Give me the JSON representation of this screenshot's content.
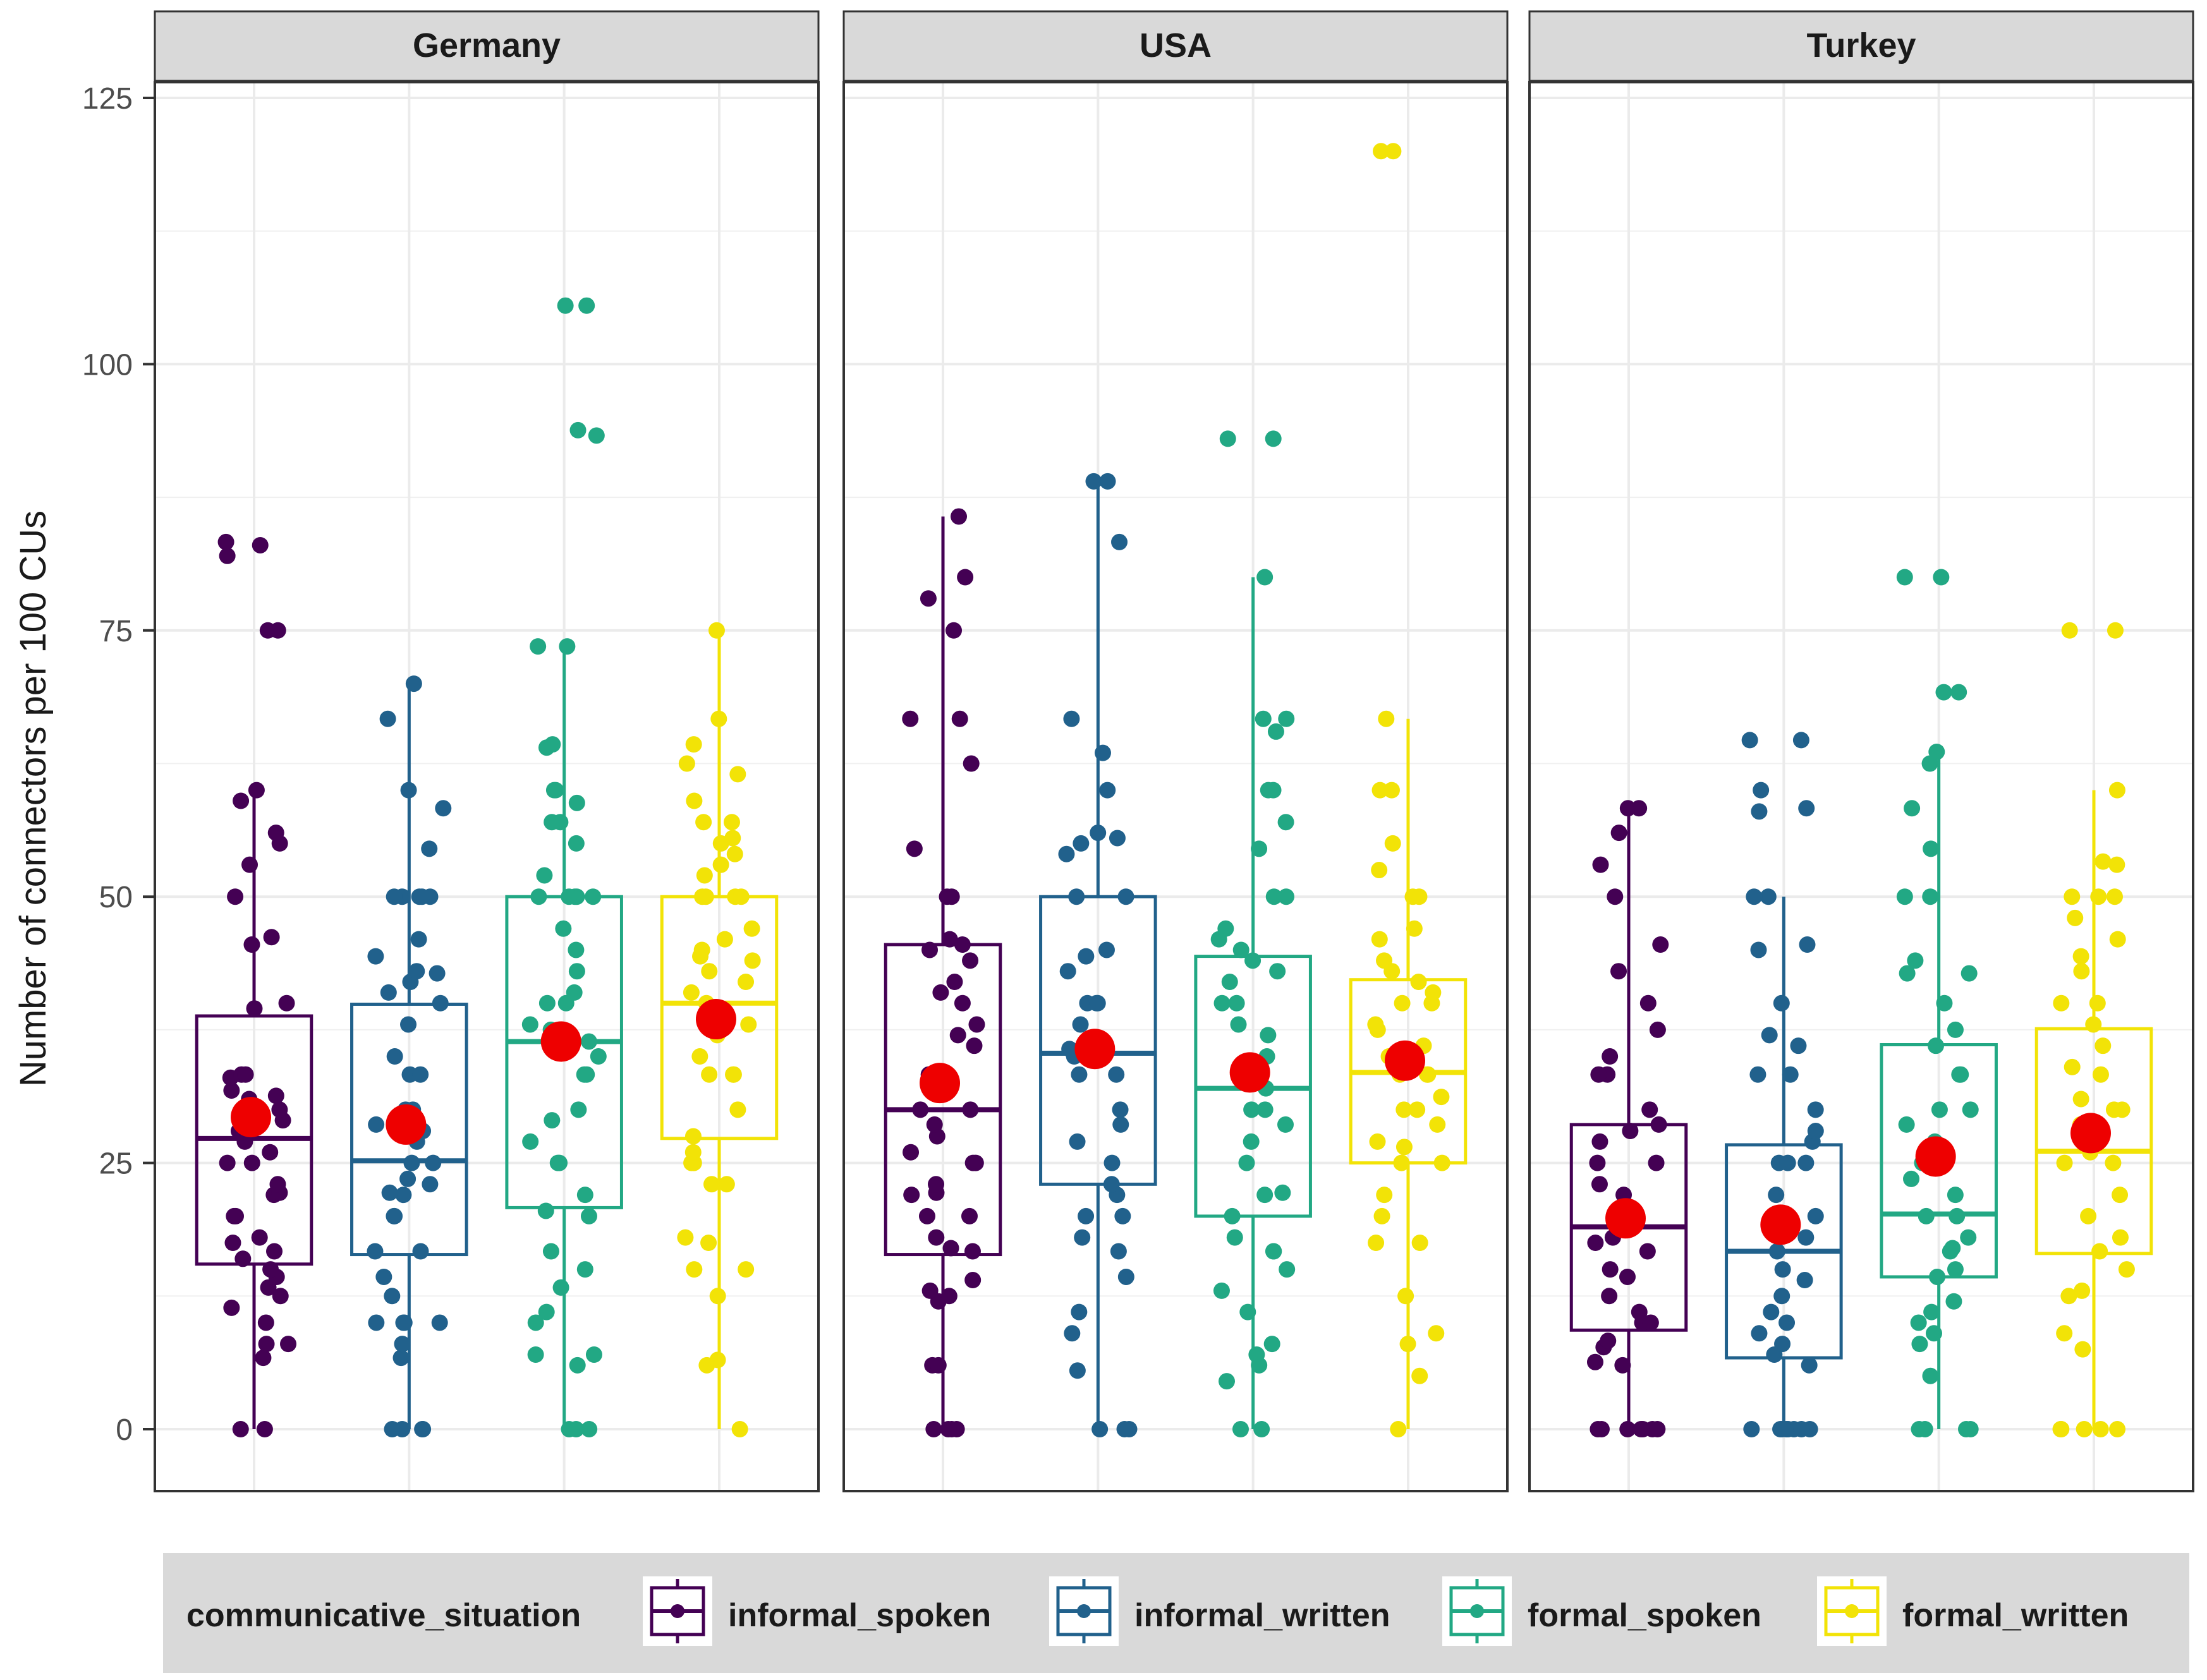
{
  "chart_data": {
    "type": "boxplot",
    "ylabel": "Number of connectors per 100 CUs",
    "xlabel": "",
    "ylim": [
      -5,
      126
    ],
    "yticks": [
      0,
      25,
      50,
      75,
      100,
      125
    ],
    "grid": true,
    "legend": {
      "title": "communicative_situation",
      "position": "bottom",
      "items": [
        {
          "name": "informal_spoken",
          "color": "#440154"
        },
        {
          "name": "informal_written",
          "color": "#21618C"
        },
        {
          "name": "formal_spoken",
          "color": "#22A884"
        },
        {
          "name": "formal_written",
          "color": "#F2E307"
        }
      ]
    },
    "mean_marker_color": "#EE0000",
    "facets": [
      {
        "name": "Germany",
        "groups": [
          {
            "situation": "informal_spoken",
            "whisker_low": 0,
            "q1": 15.5,
            "median": 27.3,
            "q3": 38.8,
            "whisker_high": 60,
            "mean": 29.3,
            "points": [
              0,
              0,
              6.7,
              8,
              8,
              10,
              11.4,
              12.5,
              13.3,
              14.3,
              15,
              16,
              16.7,
              17.5,
              18,
              20,
              20,
              22,
              22.2,
              23,
              25,
              25,
              26,
              27,
              28,
              28.6,
              29,
              30,
              30,
              31,
              31.3,
              31.8,
              33,
              33.3,
              33.3,
              39.5,
              40,
              45.5,
              46.2,
              50,
              53,
              55,
              56,
              59,
              60,
              75,
              75,
              82,
              83,
              83.3
            ]
          },
          {
            "situation": "informal_written",
            "whisker_low": 0,
            "q1": 16.4,
            "median": 25.2,
            "q3": 39.9,
            "whisker_high": 70,
            "mean": 28.6,
            "points": [
              0,
              0,
              0,
              0,
              6.7,
              8,
              10,
              10,
              10,
              10,
              12.5,
              14.3,
              16.7,
              16.7,
              20,
              20,
              22,
              22.2,
              23,
              23.5,
              25,
              25,
              27,
              28,
              28.6,
              30,
              30,
              33.3,
              33.3,
              35,
              38,
              40,
              41,
              42,
              42.8,
              43,
              44.4,
              46,
              50,
              50,
              50,
              50,
              50,
              54.5,
              58.3,
              60,
              66.7,
              70
            ]
          },
          {
            "situation": "formal_spoken",
            "whisker_low": 0,
            "q1": 20.8,
            "median": 36.4,
            "q3": 50,
            "whisker_high": 73.5,
            "mean": 36.4,
            "points": [
              0,
              0,
              0,
              6,
              7,
              7,
              10,
              11,
              13.3,
              15,
              16.7,
              20,
              20.5,
              22,
              25,
              25,
              27,
              29,
              30,
              33.3,
              33.3,
              35,
              36,
              36.4,
              37.5,
              38,
              40,
              40,
              41,
              43,
              45,
              47,
              50,
              50,
              50,
              50,
              50,
              52,
              55,
              57,
              57,
              58.8,
              60,
              60,
              64,
              64.3,
              73.5,
              73.5,
              93.3,
              93.8,
              105.5,
              105.5
            ]
          },
          {
            "situation": "formal_written",
            "whisker_low": 0,
            "q1": 27.3,
            "median": 40,
            "q3": 50,
            "whisker_high": 75,
            "mean": 38.5,
            "points": [
              0,
              6,
              6.5,
              12.5,
              15,
              15,
              17.5,
              18,
              23,
              23,
              25,
              25,
              26,
              27.5,
              30,
              33.3,
              33.3,
              33.3,
              35,
              37,
              38,
              40,
              41,
              42,
              43,
              44,
              44.4,
              45,
              46,
              47,
              50,
              50,
              50,
              50,
              52,
              53,
              54,
              55,
              55.5,
              57,
              57,
              59,
              61.5,
              62.5,
              64.3,
              66.7,
              75
            ]
          }
        ]
      },
      {
        "name": "USA",
        "groups": [
          {
            "situation": "informal_spoken",
            "whisker_low": 0,
            "q1": 16.4,
            "median": 30,
            "q3": 45.5,
            "whisker_high": 85.7,
            "mean": 32.5,
            "points": [
              0,
              0,
              0,
              0,
              6,
              6,
              12,
              12.5,
              13,
              14,
              16.7,
              17,
              18,
              20,
              20,
              22,
              22.2,
              23,
              25,
              25,
              26,
              27.5,
              28.6,
              30,
              30,
              33.3,
              36,
              37,
              38,
              40,
              41,
              42,
              44,
              45,
              45.5,
              46,
              50,
              50,
              54.5,
              62.5,
              66.7,
              66.7,
              75,
              78,
              80,
              85.7
            ]
          },
          {
            "situation": "informal_written",
            "whisker_low": 0,
            "q1": 23,
            "median": 35.3,
            "q3": 50,
            "whisker_high": 89,
            "mean": 35.7,
            "points": [
              0,
              0,
              0,
              5.5,
              9,
              11,
              14.3,
              16.7,
              18,
              20,
              20,
              22,
              23,
              25,
              27,
              28.6,
              30,
              33.3,
              33.3,
              35,
              35.7,
              38,
              40,
              40,
              40,
              43,
              44.4,
              45,
              50,
              50,
              54,
              55,
              55.5,
              56,
              60,
              63.5,
              66.7,
              83.3,
              89,
              89
            ]
          },
          {
            "situation": "formal_spoken",
            "whisker_low": 0,
            "q1": 20,
            "median": 32,
            "q3": 44.4,
            "whisker_high": 80,
            "mean": 33.5,
            "points": [
              0,
              0,
              4.5,
              6,
              7,
              8,
              11,
              13,
              15,
              16.7,
              16.7,
              18,
              20,
              22,
              22.2,
              25,
              27,
              28.6,
              30,
              30,
              32,
              33.3,
              33.3,
              35,
              37,
              38,
              40,
              40,
              42,
              43,
              44,
              45,
              46,
              47,
              50,
              50,
              54.5,
              57,
              60,
              60,
              65.5,
              66.7,
              66.7,
              80,
              93,
              93
            ]
          },
          {
            "situation": "formal_written",
            "whisker_low": 0,
            "q1": 25,
            "median": 33.5,
            "q3": 42.2,
            "whisker_high": 66.7,
            "mean": 34.6,
            "points": [
              0,
              5,
              8,
              9,
              12.5,
              17.5,
              17.5,
              20,
              22,
              25,
              25,
              26.5,
              27,
              28.6,
              30,
              30,
              31.2,
              33.3,
              33.3,
              33.3,
              35,
              36,
              37.5,
              38,
              40,
              40,
              41,
              42,
              43,
              44,
              46,
              47,
              50,
              50,
              52.5,
              55,
              60,
              60,
              66.7,
              120,
              120
            ]
          }
        ]
      },
      {
        "name": "Turkey",
        "groups": [
          {
            "situation": "informal_spoken",
            "whisker_low": 0,
            "q1": 9.3,
            "median": 19,
            "q3": 28.6,
            "whisker_high": 58.3,
            "mean": 19.8,
            "points": [
              0,
              0,
              0,
              0,
              0,
              0,
              0,
              6,
              6.3,
              7.7,
              8.3,
              10,
              10,
              11,
              12.5,
              14.3,
              15,
              16.7,
              17.5,
              18,
              20,
              20,
              21,
              22,
              23,
              25,
              25,
              27,
              28,
              28.6,
              30,
              33.3,
              33.3,
              35,
              37.5,
              40,
              43,
              45.5,
              50,
              53,
              56,
              58.3,
              58.3
            ]
          },
          {
            "situation": "informal_written",
            "whisker_low": 0,
            "q1": 6.7,
            "median": 16.7,
            "q3": 26.7,
            "whisker_high": 50,
            "mean": 19.2,
            "points": [
              0,
              0,
              0,
              0,
              0,
              0,
              0,
              0,
              6,
              7,
              8,
              9,
              10,
              11,
              12.5,
              14,
              15,
              16.7,
              18,
              20,
              20,
              22,
              25,
              25,
              25,
              27,
              28,
              30,
              33.3,
              33.3,
              36,
              37,
              40,
              45,
              45.5,
              50,
              50,
              58,
              58.3,
              60,
              64.7,
              64.7
            ]
          },
          {
            "situation": "formal_spoken",
            "whisker_low": 0,
            "q1": 14.3,
            "median": 20.2,
            "q3": 36.1,
            "whisker_high": 63.6,
            "mean": 25.6,
            "points": [
              0,
              0,
              0,
              0,
              5,
              8,
              9,
              10,
              11,
              12,
              14.3,
              15,
              16.7,
              17,
              18,
              20,
              20,
              22,
              23.5,
              25,
              25,
              27,
              28.6,
              30,
              30,
              33.3,
              33.3,
              36,
              37.5,
              40,
              42.8,
              42.8,
              44,
              50,
              50,
              54.5,
              58.3,
              62.5,
              63.6,
              69.2,
              69.2,
              80,
              80
            ]
          },
          {
            "situation": "formal_written",
            "whisker_low": 0,
            "q1": 16.5,
            "median": 26.1,
            "q3": 37.6,
            "whisker_high": 60,
            "mean": 27.8,
            "points": [
              0,
              0,
              0,
              0,
              0,
              7.5,
              9,
              12.5,
              13,
              15,
              16.7,
              18,
              20,
              22,
              25,
              25,
              26,
              27,
              28.6,
              30,
              30,
              31,
              33.3,
              34,
              36,
              38,
              40,
              40,
              43,
              44.4,
              46,
              48,
              50,
              50,
              50,
              53,
              53.3,
              60,
              75,
              75
            ]
          }
        ]
      }
    ]
  }
}
